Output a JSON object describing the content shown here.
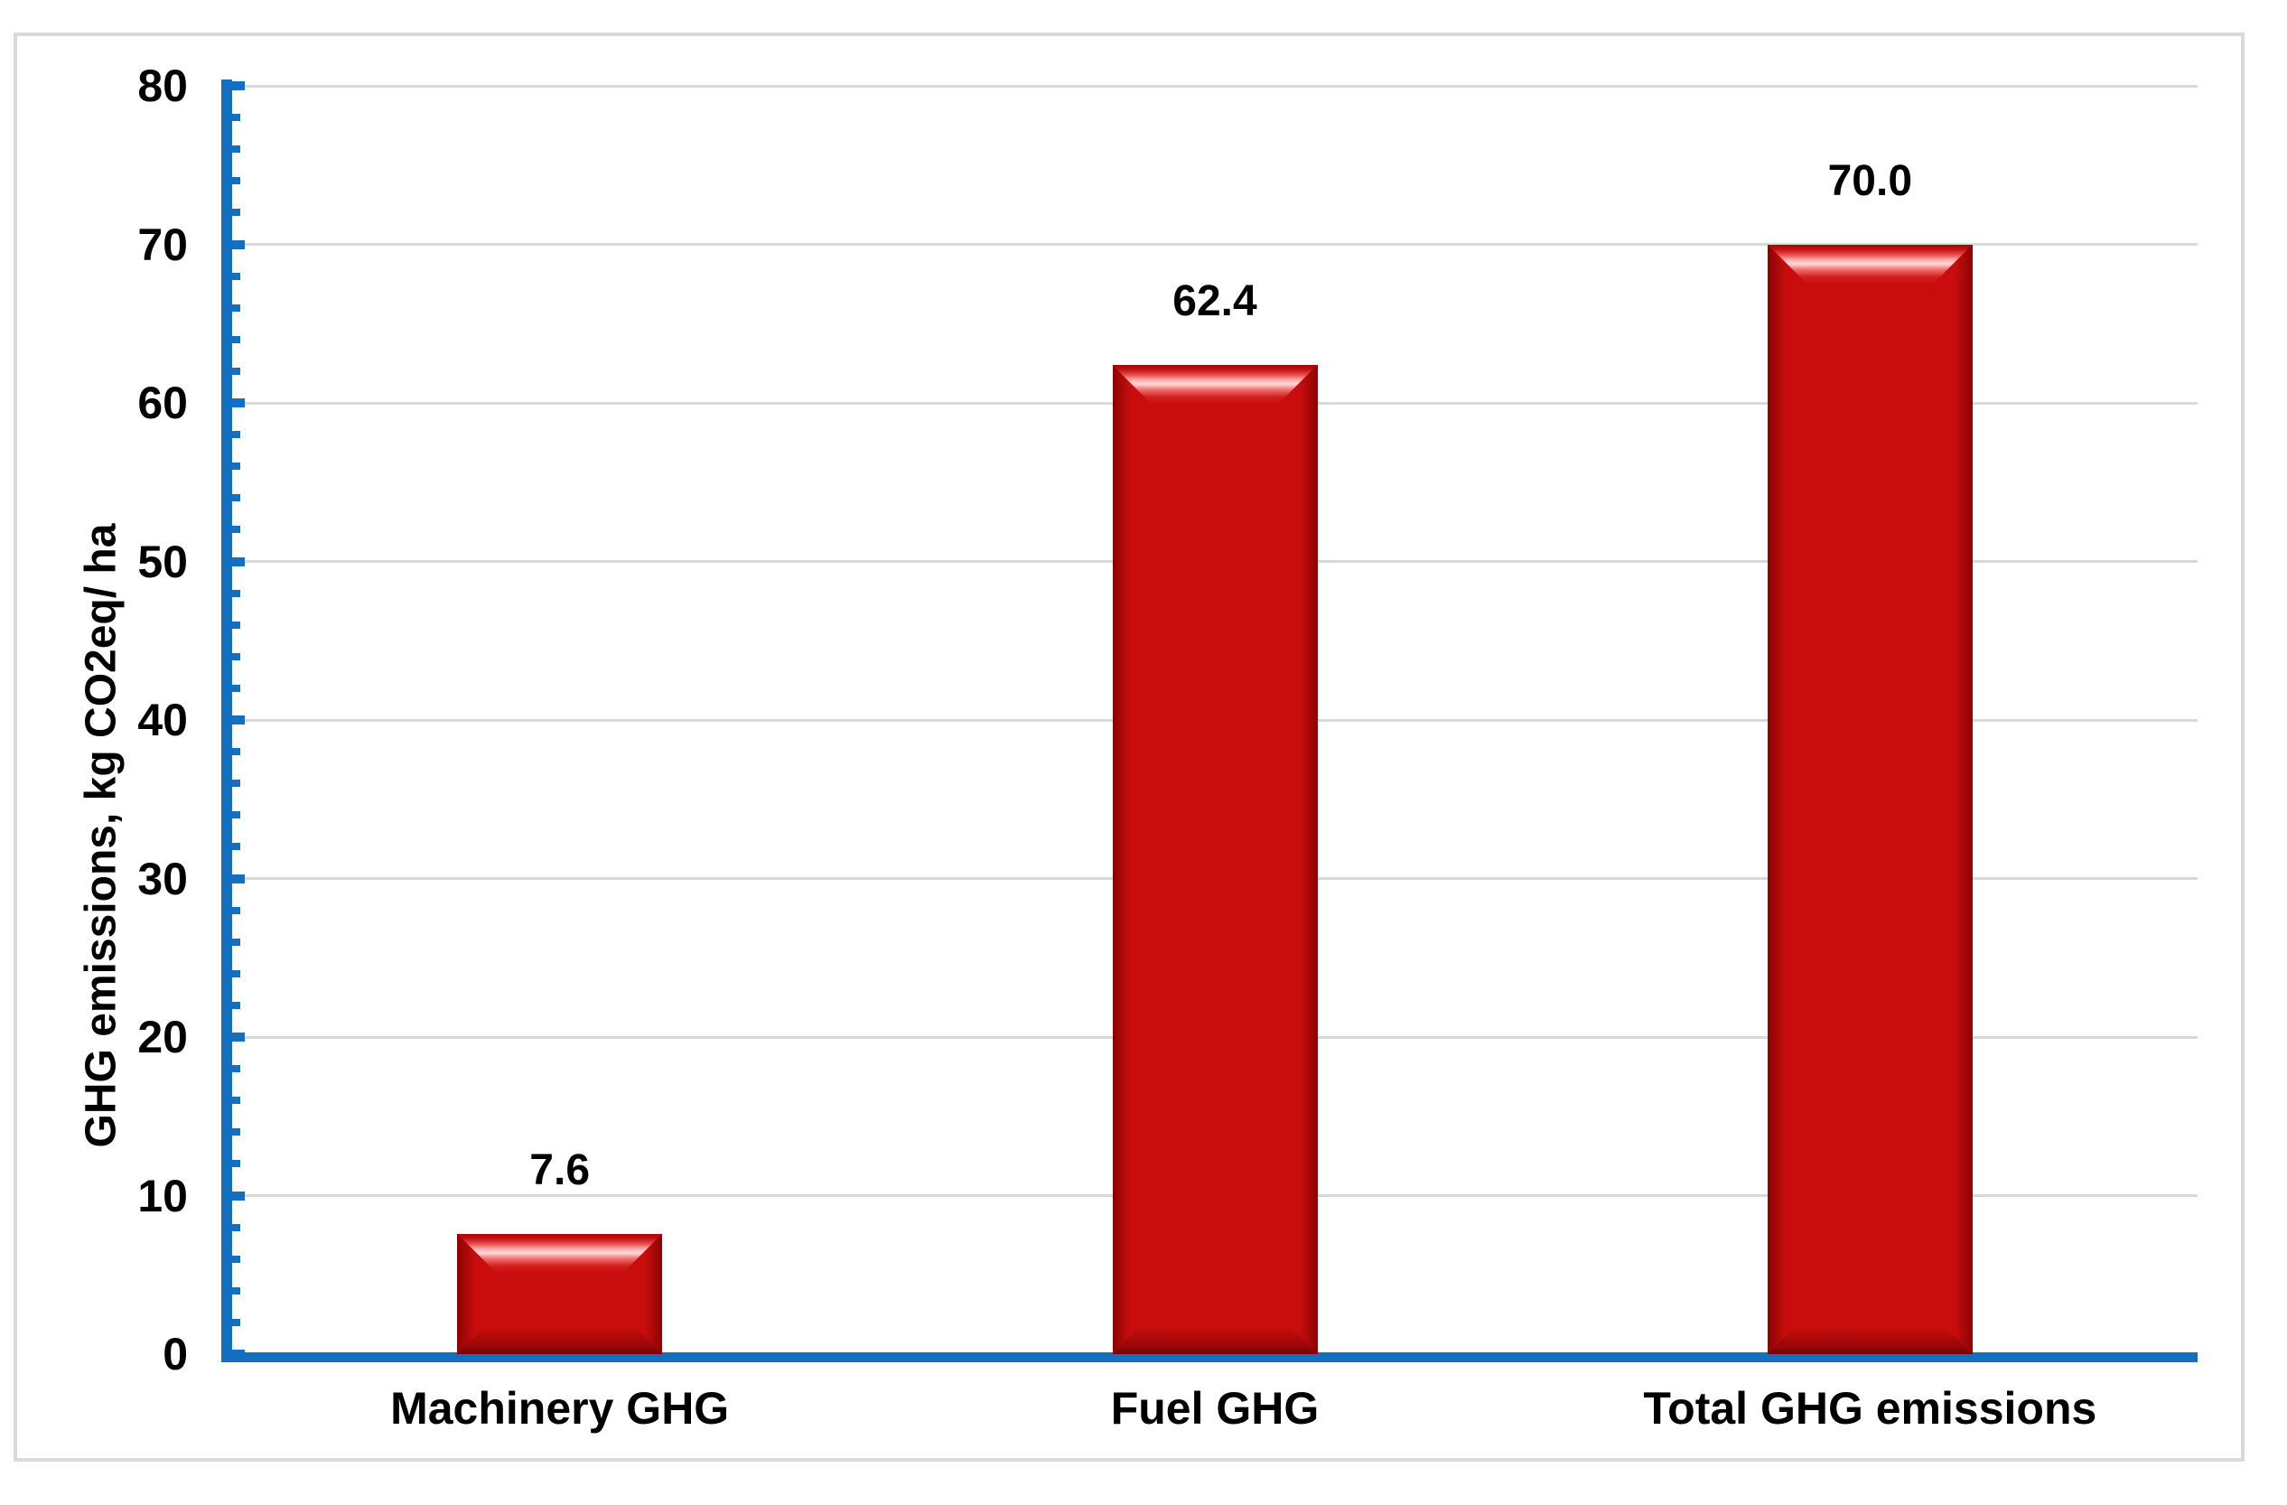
{
  "chart_data": {
    "type": "bar",
    "categories": [
      "Machinery GHG",
      "Fuel GHG",
      "Total GHG emissions"
    ],
    "values": [
      7.6,
      62.4,
      70.0
    ],
    "data_labels": [
      "7.6",
      "62.4",
      "70.0"
    ],
    "title": "",
    "xlabel": "",
    "ylabel": "GHG emissions, kg CO2eq/ ha",
    "ylim": [
      0,
      80
    ],
    "ytick_interval": 10,
    "minor_tick_interval": 2,
    "ytick_labels": [
      "0",
      "10",
      "20",
      "30",
      "40",
      "50",
      "60",
      "70",
      "80"
    ],
    "grid": true,
    "legend_position": "none",
    "colors": {
      "bar_fill": "#C90D0D",
      "bar_edge_dark": "#8A0303",
      "bar_highlight": "#FFD9D9",
      "axis_line": "#1470BE",
      "gridline": "#D9D9D9",
      "frame_border": "#D9D9D9",
      "label_text": "#000000",
      "background": "#FFFFFF"
    }
  }
}
